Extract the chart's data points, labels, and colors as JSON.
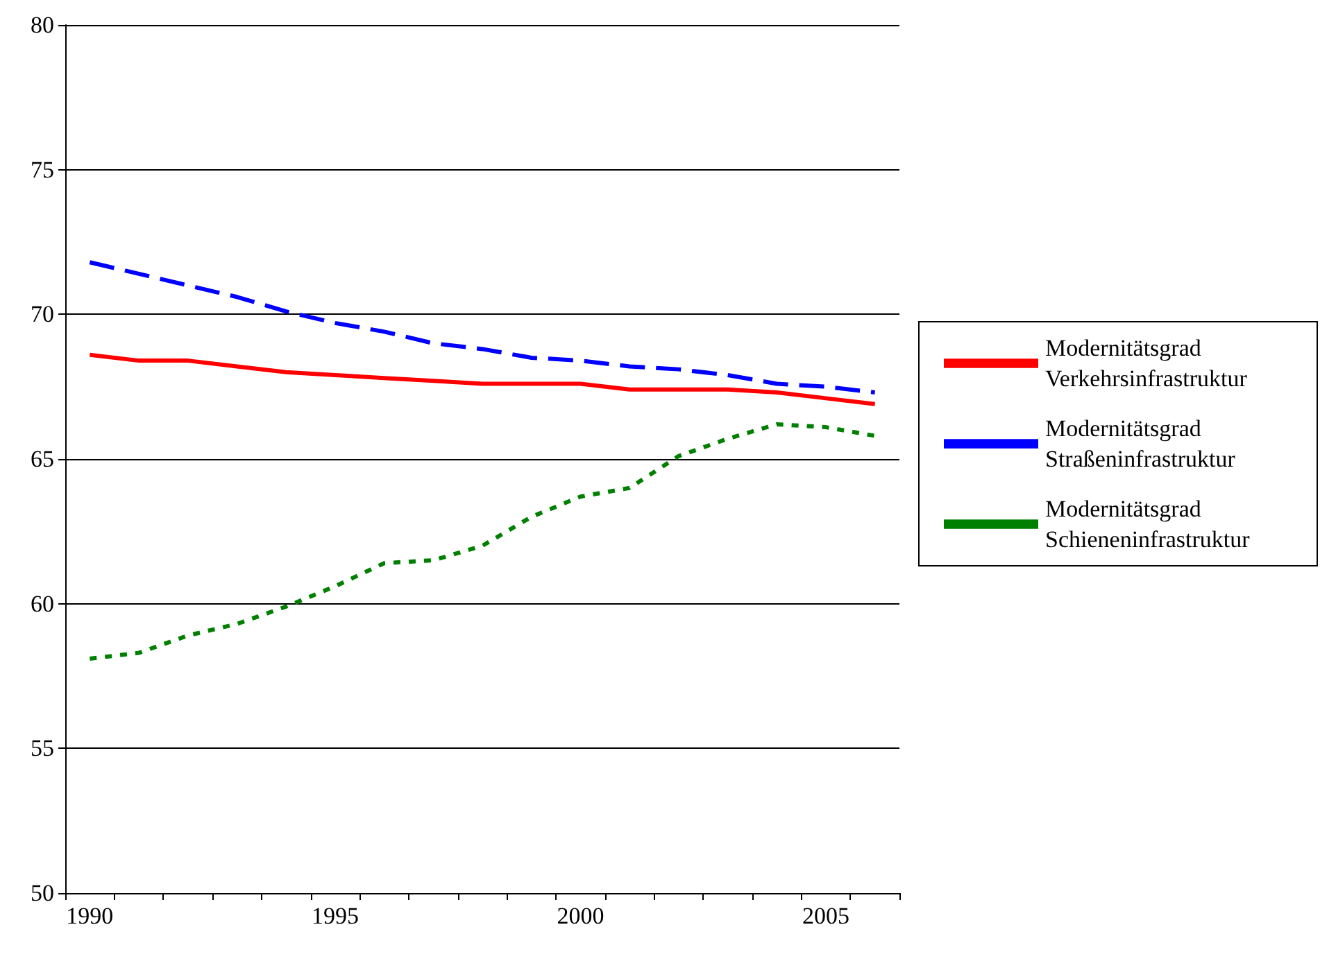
{
  "chart_data": {
    "type": "line",
    "categories": [
      "1990",
      null,
      null,
      null,
      null,
      "1995",
      null,
      null,
      null,
      null,
      "2000",
      null,
      null,
      null,
      null,
      "2005",
      null
    ],
    "series": [
      {
        "name": "Modernitätsgrad Verkehrsinfrastruktur",
        "color": "#ff0000",
        "line_style": "solid",
        "values": [
          68.6,
          68.4,
          68.4,
          68.2,
          68.0,
          67.9,
          67.8,
          67.7,
          67.6,
          67.6,
          67.6,
          67.4,
          67.4,
          67.4,
          67.3,
          67.1,
          66.9
        ]
      },
      {
        "name": "Modernitätsgrad Straßeninfrastruktur",
        "color": "#0000ff",
        "line_style": "dashed",
        "values": [
          71.8,
          71.4,
          71.0,
          70.6,
          70.1,
          69.7,
          69.4,
          69.0,
          68.8,
          68.5,
          68.4,
          68.2,
          68.1,
          67.9,
          67.6,
          67.5,
          67.3
        ]
      },
      {
        "name": "Modernitätsgrad Schieneninfrastruktur",
        "color": "#008000",
        "line_style": "dotted",
        "values": [
          58.1,
          58.3,
          58.9,
          59.3,
          59.9,
          60.6,
          61.4,
          61.5,
          62.0,
          63.0,
          63.7,
          64.0,
          65.1,
          65.7,
          66.2,
          66.1,
          65.8
        ]
      }
    ],
    "ylim": [
      50,
      80
    ],
    "yticks": [
      50,
      55,
      60,
      65,
      70,
      75,
      80
    ],
    "grid": "y",
    "legend": "right",
    "marker": "none"
  }
}
